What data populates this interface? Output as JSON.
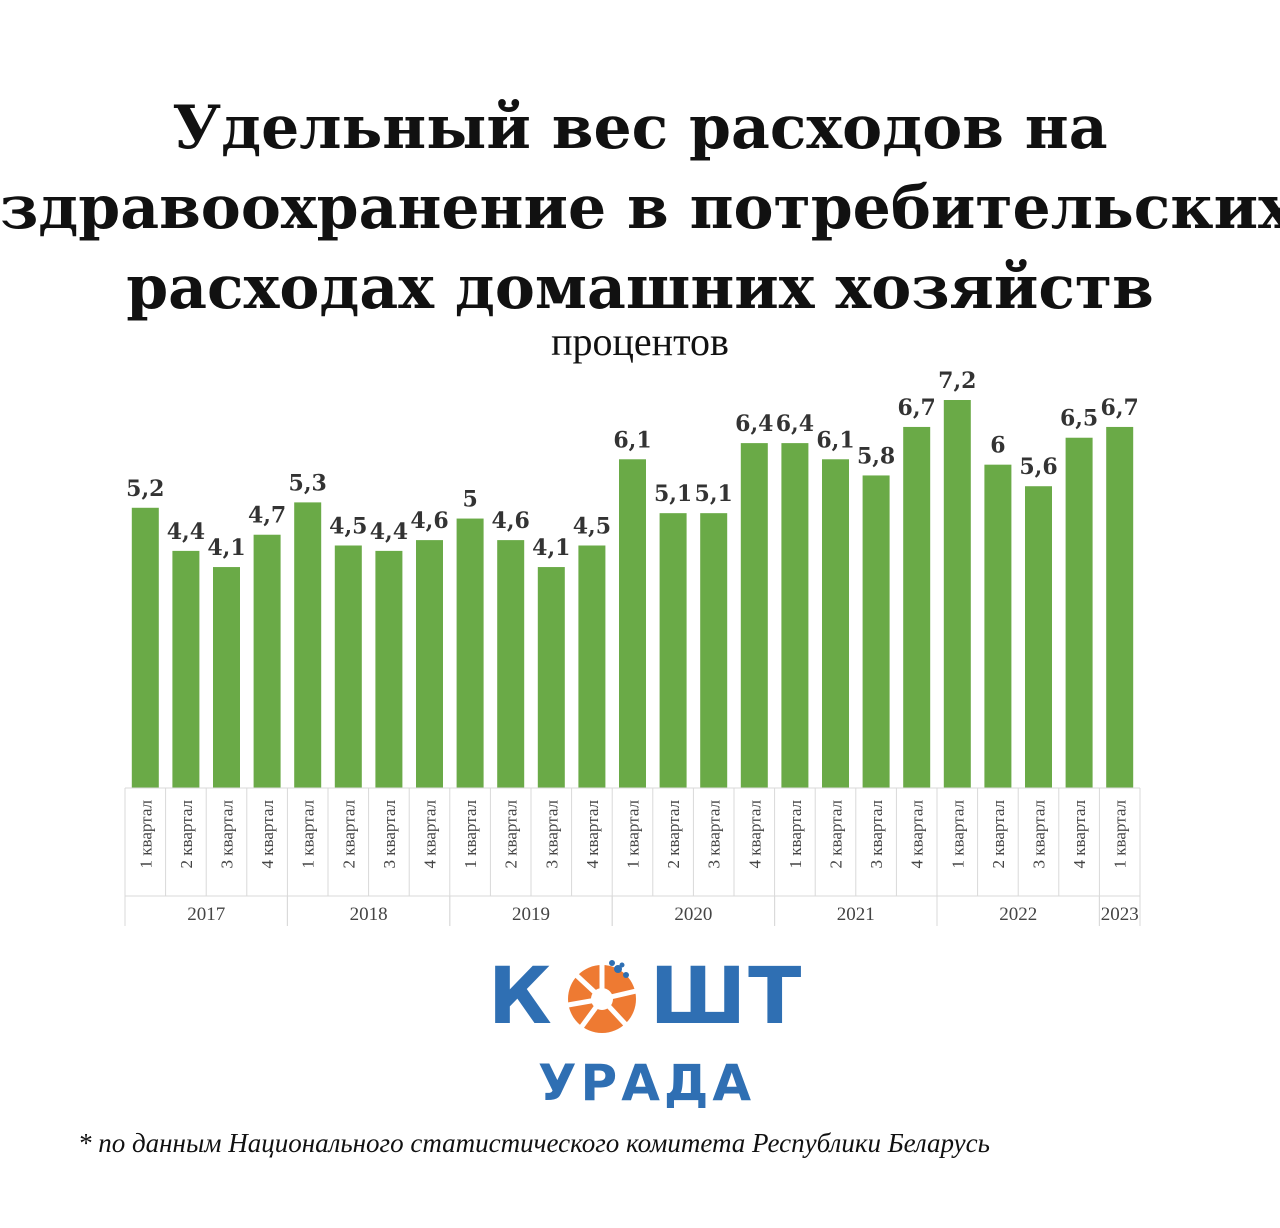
{
  "title_lines": [
    "Удельный вес расходов на",
    "здравоохранение в потребительских",
    "расходах домашних хозяйств"
  ],
  "subtitle": "процентов",
  "chart_data": {
    "type": "bar",
    "title": "Удельный вес расходов на здравоохранение в потребительских расходах домашних хозяйств",
    "ylabel": "процентов",
    "categories": [
      "1 квартал",
      "2 квартал",
      "3 квартал",
      "4 квартал",
      "1 квартал",
      "2 квартал",
      "3 квартал",
      "4 квартал",
      "1 квартал",
      "2 квартал",
      "3 квартал",
      "4 квартал",
      "1 квартал",
      "2 квартал",
      "3 квартал",
      "4 квартал",
      "1 квартал",
      "2 квартал",
      "3 квартал",
      "4 квартал",
      "1 квартал",
      "2 квартал",
      "3 квартал",
      "4 квартал",
      "1 квартал"
    ],
    "years": [
      {
        "label": "2017",
        "count": 4
      },
      {
        "label": "2018",
        "count": 4
      },
      {
        "label": "2019",
        "count": 4
      },
      {
        "label": "2020",
        "count": 4
      },
      {
        "label": "2021",
        "count": 4
      },
      {
        "label": "2022",
        "count": 4
      },
      {
        "label": "2023",
        "count": 1
      }
    ],
    "values": [
      5.2,
      4.4,
      4.1,
      4.7,
      5.3,
      4.5,
      4.4,
      4.6,
      5,
      4.6,
      4.1,
      4.5,
      6.1,
      5.1,
      5.1,
      6.4,
      6.4,
      6.1,
      5.8,
      6.7,
      7.2,
      6,
      5.6,
      6.5,
      6.7
    ],
    "value_labels": [
      "5,2",
      "4,4",
      "4,1",
      "4,7",
      "5,3",
      "4,5",
      "4,4",
      "4,6",
      "5",
      "4,6",
      "4,1",
      "4,5",
      "6,1",
      "5,1",
      "5,1",
      "6,4",
      "6,4",
      "6,1",
      "5,8",
      "6,7",
      "7,2",
      "6",
      "5,6",
      "6,5",
      "6,7"
    ],
    "ylim": [
      0,
      7.2
    ],
    "grid": false,
    "bar_color": "#6aaa47"
  },
  "logo": {
    "top": "КОШТ",
    "bottom": "УРАДА",
    "color": "#2f6fb3",
    "accent": "#ee7a32"
  },
  "footnote": "* по данным Национального статистического комитета Республики Беларусь"
}
